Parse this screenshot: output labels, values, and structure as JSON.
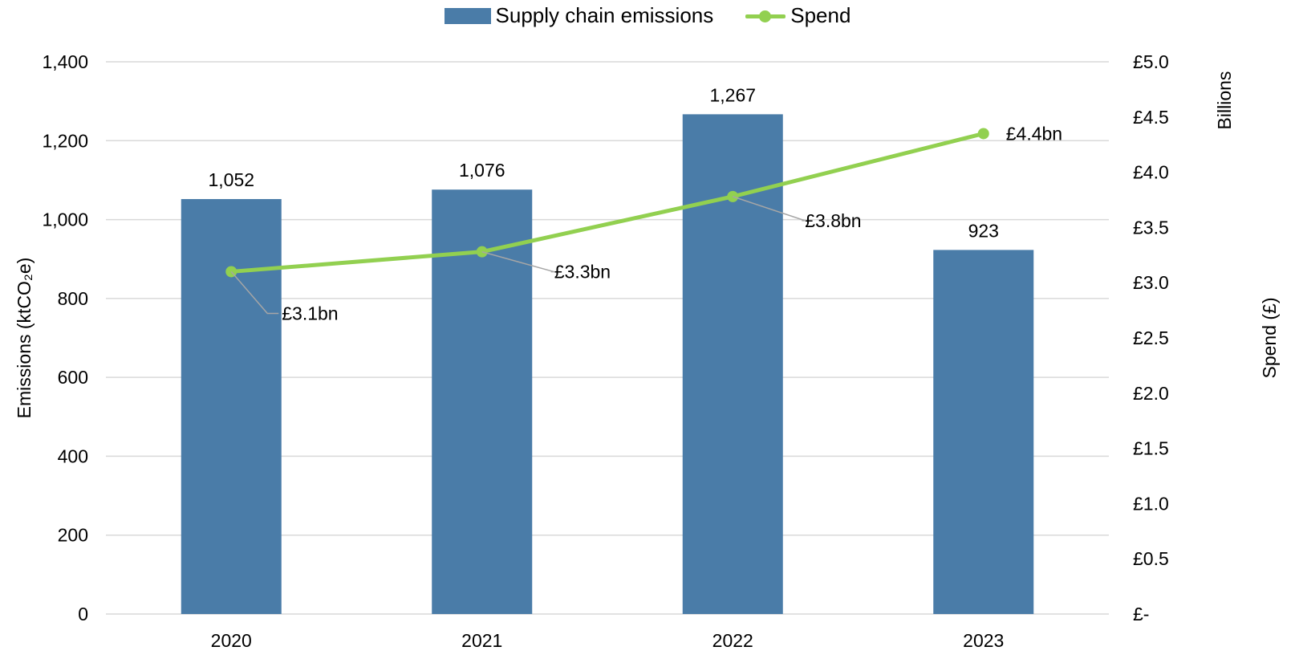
{
  "legend": {
    "bar_label": "Supply chain emissions",
    "line_label": "Spend"
  },
  "colors": {
    "bar": "#4a7ca8",
    "line": "#92d050",
    "grid": "#d9d9d9",
    "leader": "#a6a6a6"
  },
  "chart_data": {
    "type": "bar",
    "categories": [
      "2020",
      "2021",
      "2022",
      "2023"
    ],
    "series": [
      {
        "name": "Supply chain emissions",
        "type": "bar",
        "axis": "left",
        "values": [
          1052,
          1076,
          1267,
          923
        ],
        "data_labels": [
          "1,052",
          "1,076",
          "1,267",
          "923"
        ]
      },
      {
        "name": "Spend",
        "type": "line",
        "axis": "right",
        "values": [
          3.1,
          3.28,
          3.78,
          4.35
        ],
        "data_labels": [
          "£3.1bn",
          "£3.3bn",
          "£3.8bn",
          "£4.4bn"
        ]
      }
    ],
    "y_left": {
      "label": "Emissions (ktCO₂e)",
      "ylim": [
        0,
        1400
      ],
      "ticks": [
        "0",
        "200",
        "400",
        "600",
        "800",
        "1,000",
        "1,200",
        "1,400"
      ]
    },
    "y_right": {
      "label": "Spend (£)",
      "unit_label": "Billions",
      "ylim": [
        0,
        5
      ],
      "ticks": [
        "£-",
        "£0.5",
        "£1.0",
        "£1.5",
        "£2.0",
        "£2.5",
        "£3.0",
        "£3.5",
        "£4.0",
        "£4.5",
        "£5.0"
      ]
    },
    "grid": true,
    "legend_position": "top-center"
  }
}
